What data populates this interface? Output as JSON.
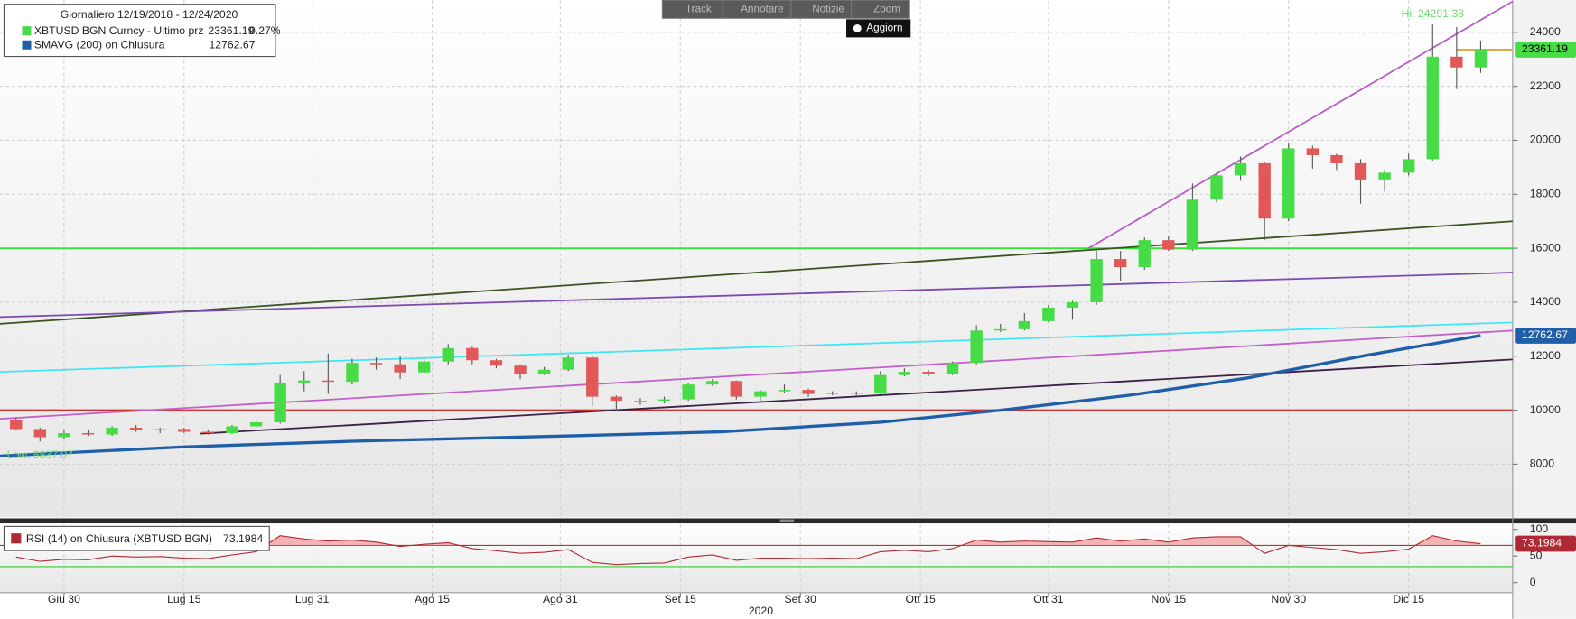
{
  "toolbar": {
    "track": "Track",
    "annotate": "Annotare",
    "news": "Notizie",
    "zoom": "Zoom",
    "refresh": "Aggiorn"
  },
  "chart_data": [
    {
      "type": "candlestick",
      "title": "Giornaliero 12/19/2018 - 12/24/2020",
      "name": "XBTUSD BGN Curncy - Ultimo prz",
      "change_label": "0.27%",
      "up_color": "#46dc46",
      "down_color": "#e25858",
      "x": [
        "2020-06-24",
        "2020-06-27",
        "2020-06-30",
        "2020-07-03",
        "2020-07-06",
        "2020-07-09",
        "2020-07-12",
        "2020-07-15",
        "2020-07-18",
        "2020-07-21",
        "2020-07-24",
        "2020-07-27",
        "2020-07-30",
        "2020-08-02",
        "2020-08-05",
        "2020-08-08",
        "2020-08-11",
        "2020-08-14",
        "2020-08-17",
        "2020-08-20",
        "2020-08-23",
        "2020-08-26",
        "2020-08-29",
        "2020-09-01",
        "2020-09-04",
        "2020-09-07",
        "2020-09-10",
        "2020-09-13",
        "2020-09-16",
        "2020-09-19",
        "2020-09-22",
        "2020-09-25",
        "2020-09-28",
        "2020-10-01",
        "2020-10-04",
        "2020-10-07",
        "2020-10-10",
        "2020-10-13",
        "2020-10-16",
        "2020-10-19",
        "2020-10-22",
        "2020-10-25",
        "2020-10-28",
        "2020-10-31",
        "2020-11-03",
        "2020-11-06",
        "2020-11-09",
        "2020-11-12",
        "2020-11-15",
        "2020-11-18",
        "2020-11-21",
        "2020-11-24",
        "2020-11-27",
        "2020-11-30",
        "2020-12-03",
        "2020-12-06",
        "2020-12-09",
        "2020-12-12",
        "2020-12-15",
        "2020-12-18",
        "2020-12-21",
        "2020-12-24"
      ],
      "open": [
        9650,
        9300,
        9000,
        9150,
        9100,
        9350,
        9250,
        9300,
        9200,
        9150,
        9400,
        9550,
        11000,
        11100,
        11050,
        11750,
        11700,
        11400,
        11800,
        12300,
        11850,
        11650,
        11350,
        11500,
        11950,
        10500,
        10350,
        10350,
        10400,
        10950,
        11080,
        10500,
        10700,
        10750,
        10600,
        10650,
        10620,
        11300,
        11420,
        11350,
        11750,
        12950,
        13000,
        13300,
        13800,
        14000,
        15600,
        15300,
        16300,
        15950,
        17800,
        18700,
        19150,
        17100,
        19700,
        19450,
        19150,
        18550,
        18800,
        19300,
        23100,
        22700
      ],
      "high": [
        9700,
        9350,
        9250,
        9250,
        9400,
        9450,
        9350,
        9350,
        9250,
        9450,
        9650,
        11300,
        11450,
        12100,
        11900,
        11950,
        12000,
        11900,
        12450,
        12350,
        11900,
        11700,
        11600,
        12050,
        12000,
        10550,
        10450,
        10500,
        11000,
        11150,
        11100,
        10750,
        10950,
        10800,
        10700,
        10700,
        11450,
        11550,
        11500,
        11800,
        13150,
        13200,
        13600,
        13900,
        14050,
        15900,
        15900,
        16400,
        16450,
        18400,
        18800,
        19400,
        19200,
        19900,
        19800,
        19500,
        19300,
        18900,
        19500,
        24291.38,
        24200,
        23700
      ],
      "low": [
        9250,
        8837.07,
        8950,
        9050,
        9050,
        9200,
        9150,
        9150,
        9100,
        9120,
        9350,
        9500,
        10700,
        10600,
        10950,
        11500,
        11150,
        11350,
        11700,
        11700,
        11550,
        11150,
        11300,
        11450,
        10150,
        9950,
        10200,
        10250,
        10350,
        10900,
        10400,
        10350,
        10650,
        10500,
        10550,
        10550,
        10600,
        11250,
        11250,
        11300,
        11700,
        12900,
        12950,
        13250,
        13350,
        13900,
        14800,
        15200,
        15900,
        15900,
        17700,
        18500,
        16300,
        17000,
        18950,
        18900,
        17650,
        18100,
        18700,
        19250,
        21900,
        22500
      ],
      "close": [
        9300,
        9000,
        9150,
        9100,
        9350,
        9250,
        9300,
        9200,
        9150,
        9400,
        9550,
        11000,
        11100,
        11050,
        11750,
        11700,
        11400,
        11800,
        12300,
        11850,
        11650,
        11350,
        11500,
        11950,
        10500,
        10350,
        10350,
        10400,
        10950,
        11080,
        10500,
        10700,
        10750,
        10600,
        10650,
        10620,
        11300,
        11420,
        11350,
        11750,
        12950,
        13000,
        13300,
        13800,
        14000,
        15600,
        15300,
        16300,
        15950,
        17800,
        18700,
        19150,
        17100,
        19700,
        19450,
        19150,
        18550,
        18800,
        19300,
        23100,
        22700,
        23361.19
      ],
      "sma": {
        "name": "SMAVG (200)  on Chiusura",
        "color": "#1f5fa8",
        "x": [
          "2020-06-22",
          "2020-07-15",
          "2020-08-05",
          "2020-08-31",
          "2020-09-20",
          "2020-10-10",
          "2020-10-25",
          "2020-11-10",
          "2020-11-25",
          "2020-12-10",
          "2020-12-24"
        ],
        "values": [
          8300,
          8640,
          8850,
          9040,
          9200,
          9550,
          10000,
          10550,
          11200,
          12050,
          12762.67
        ]
      },
      "trendlines": [
        {
          "color": "#2ee82e",
          "x": [
            "2020-06-22",
            "2020-12-28"
          ],
          "y": [
            16000,
            16000
          ]
        },
        {
          "color": "#cc3333",
          "x": [
            "2020-06-22",
            "2020-12-28"
          ],
          "y": [
            10000,
            10000
          ]
        },
        {
          "color": "#3b5323",
          "x": [
            "2020-06-22",
            "2020-12-28"
          ],
          "y": [
            13200,
            17000
          ]
        },
        {
          "color": "#7b4bb0",
          "x": [
            "2020-06-22",
            "2020-12-28"
          ],
          "y": [
            13450,
            15100
          ]
        },
        {
          "color": "#3fe7f5",
          "x": [
            "2020-06-22",
            "2020-12-28"
          ],
          "y": [
            11420,
            13250
          ]
        },
        {
          "color": "#c45ec8",
          "x": [
            "2020-06-22",
            "2020-12-28"
          ],
          "y": [
            9680,
            12950
          ]
        },
        {
          "color": "#3c2148",
          "x": [
            "2020-07-17",
            "2020-12-28"
          ],
          "y": [
            9130,
            11880
          ]
        },
        {
          "color": "#b65cc4",
          "x": [
            "2020-11-05",
            "2020-12-28"
          ],
          "y": [
            16000,
            25150
          ]
        },
        {
          "color": "#d9a030",
          "x": [
            "2020-12-21",
            "2020-12-28"
          ],
          "y": [
            23361.19,
            23361.19
          ]
        }
      ],
      "annotations": [
        {
          "text": "Hi: 24291.38",
          "x": "2020-12-18",
          "y": 24291.38,
          "color": "#6fdc6f"
        },
        {
          "text": "Low: 8837.07",
          "x": "2020-06-27",
          "y": 8837.07,
          "color": "#6fdc6f"
        }
      ],
      "xlim": [
        "2020-06-22",
        "2020-12-28"
      ],
      "xticks": [
        {
          "value": "2020-06-30",
          "label": "Giu 30"
        },
        {
          "value": "2020-07-15",
          "label": "Lug 15"
        },
        {
          "value": "2020-07-31",
          "label": "Lug 31"
        },
        {
          "value": "2020-08-15",
          "label": "Ago 15"
        },
        {
          "value": "2020-08-31",
          "label": "Ago 31"
        },
        {
          "value": "2020-09-15",
          "label": "Set 15"
        },
        {
          "value": "2020-09-30",
          "label": "Set 30"
        },
        {
          "value": "2020-10-15",
          "label": "Ott 15"
        },
        {
          "value": "2020-10-31",
          "label": "Ott 31"
        },
        {
          "value": "2020-11-15",
          "label": "Nov 15"
        },
        {
          "value": "2020-11-30",
          "label": "Nov 30"
        },
        {
          "value": "2020-12-15",
          "label": "Dic 15"
        }
      ],
      "xlabel": "2020",
      "ylim": [
        6028,
        25191
      ],
      "yticks": [
        8000,
        10000,
        12000,
        14000,
        16000,
        18000,
        20000,
        22000,
        24000
      ],
      "grid": true
    },
    {
      "type": "line",
      "x": [
        "2020-06-24",
        "2020-06-27",
        "2020-06-30",
        "2020-07-03",
        "2020-07-06",
        "2020-07-09",
        "2020-07-12",
        "2020-07-15",
        "2020-07-18",
        "2020-07-21",
        "2020-07-24",
        "2020-07-27",
        "2020-07-30",
        "2020-08-02",
        "2020-08-05",
        "2020-08-08",
        "2020-08-11",
        "2020-08-14",
        "2020-08-17",
        "2020-08-20",
        "2020-08-23",
        "2020-08-26",
        "2020-08-29",
        "2020-09-01",
        "2020-09-04",
        "2020-09-07",
        "2020-09-10",
        "2020-09-13",
        "2020-09-16",
        "2020-09-19",
        "2020-09-22",
        "2020-09-25",
        "2020-09-28",
        "2020-10-01",
        "2020-10-04",
        "2020-10-07",
        "2020-10-10",
        "2020-10-13",
        "2020-10-16",
        "2020-10-19",
        "2020-10-22",
        "2020-10-25",
        "2020-10-28",
        "2020-10-31",
        "2020-11-03",
        "2020-11-06",
        "2020-11-09",
        "2020-11-12",
        "2020-11-15",
        "2020-11-18",
        "2020-11-21",
        "2020-11-24",
        "2020-11-27",
        "2020-11-30",
        "2020-12-03",
        "2020-12-06",
        "2020-12-09",
        "2020-12-12",
        "2020-12-15",
        "2020-12-18",
        "2020-12-21",
        "2020-12-24"
      ],
      "series": [
        {
          "name": "RSI (14)  on Chiusura (XBTUSD BGN)",
          "color": "#b02a35",
          "values": [
            48,
            40,
            44,
            43,
            50,
            48,
            49,
            46,
            45,
            52,
            58,
            88,
            82,
            78,
            80,
            76,
            68,
            72,
            75,
            64,
            60,
            55,
            57,
            62,
            38,
            34,
            36,
            37,
            48,
            52,
            42,
            46,
            46,
            45,
            46,
            45,
            58,
            61,
            58,
            64,
            80,
            76,
            78,
            77,
            76,
            84,
            78,
            82,
            76,
            84,
            86,
            86,
            55,
            70,
            66,
            62,
            55,
            58,
            63,
            88,
            78,
            73.1984
          ]
        }
      ],
      "hlines": [
        {
          "value": 70,
          "color": "#c03030"
        },
        {
          "value": 30,
          "color": "#33cc33"
        }
      ],
      "xlim": [
        "2020-06-22",
        "2020-12-28"
      ],
      "ylim": [
        -18.9,
        109.4
      ],
      "yticks": [
        0,
        50,
        100
      ]
    }
  ]
}
